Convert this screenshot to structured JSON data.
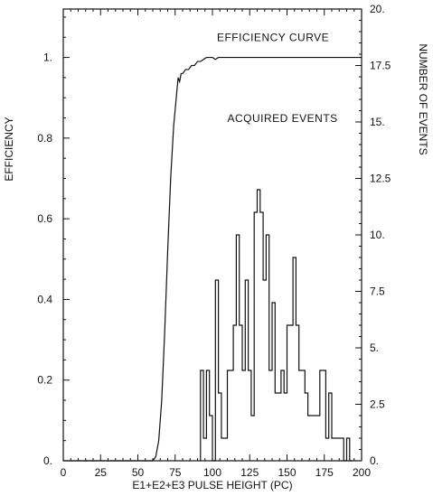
{
  "chart_data": {
    "type": "line",
    "xlabel": "E1+E2+E3 PULSE HEIGHT (PC)",
    "ylabel_left": "EFFICIENCY",
    "ylabel_right": "NUMBER OF EVENTS",
    "xlim": [
      0,
      200
    ],
    "ylim_left": [
      0,
      1.12
    ],
    "ylim_right": [
      0,
      20
    ],
    "grid": false,
    "x_ticks": [
      0,
      25,
      50,
      75,
      100,
      125,
      150,
      175,
      200
    ],
    "x_tick_labels": [
      "0",
      "25",
      "50",
      "75",
      "100",
      "125",
      "150",
      "175",
      "200"
    ],
    "y_left_ticks": [
      0,
      0.2,
      0.4,
      0.6,
      0.8,
      1.0
    ],
    "y_left_tick_labels": [
      "0.",
      "0.2",
      "0.4",
      "0.6",
      "0.8",
      "1."
    ],
    "y_right_ticks": [
      0,
      2.5,
      5,
      7.5,
      10,
      12.5,
      15,
      17.5,
      20
    ],
    "y_right_tick_labels": [
      "0.",
      "2.5",
      "5.",
      "7.5",
      "10.",
      "12.5",
      "15.",
      "17.5",
      "20."
    ],
    "annotations": [
      {
        "text": "EFFICIENCY CURVE",
        "x": 103,
        "y_left": 1.04
      },
      {
        "text": "ACQUIRED EVENTS",
        "x": 110,
        "y_left": 0.84
      }
    ],
    "series": [
      {
        "name": "EFFICIENCY CURVE",
        "axis": "left",
        "style": "line",
        "x": [
          0,
          60,
          62,
          64,
          66,
          68,
          70,
          72,
          74,
          76,
          77,
          78,
          79,
          80,
          82,
          84,
          86,
          88,
          90,
          92,
          94,
          96,
          98,
          100,
          102,
          104,
          110,
          200
        ],
        "y": [
          0,
          0,
          0.01,
          0.05,
          0.15,
          0.32,
          0.52,
          0.7,
          0.83,
          0.91,
          0.95,
          0.94,
          0.96,
          0.96,
          0.97,
          0.97,
          0.98,
          0.98,
          0.99,
          0.99,
          0.995,
          1.0,
          1.0,
          1.0,
          0.995,
          1.0,
          1.0,
          1.0
        ]
      },
      {
        "name": "ACQUIRED EVENTS",
        "axis": "right",
        "style": "step",
        "bin_edges": [
          92,
          94,
          96,
          98,
          100,
          102,
          104,
          106,
          108,
          110,
          112,
          114,
          116,
          118,
          120,
          122,
          124,
          126,
          128,
          130,
          132,
          134,
          136,
          138,
          140,
          142,
          144,
          146,
          148,
          150,
          152,
          154,
          156,
          158,
          160,
          162,
          164,
          166,
          168,
          170,
          172,
          174,
          176,
          178,
          180,
          182,
          184,
          186,
          188,
          190,
          192,
          194
        ],
        "counts": [
          4,
          1,
          4,
          2,
          0,
          8,
          3,
          1,
          1,
          4,
          4,
          6,
          10,
          6,
          4,
          8,
          4,
          2,
          11,
          12,
          11,
          8,
          10,
          4,
          7,
          3,
          3,
          4,
          3,
          6,
          6,
          9,
          6,
          4,
          4,
          3,
          2,
          2,
          2,
          2,
          4,
          4,
          1,
          3,
          1,
          1,
          1,
          1,
          0,
          1,
          0
        ]
      }
    ]
  }
}
